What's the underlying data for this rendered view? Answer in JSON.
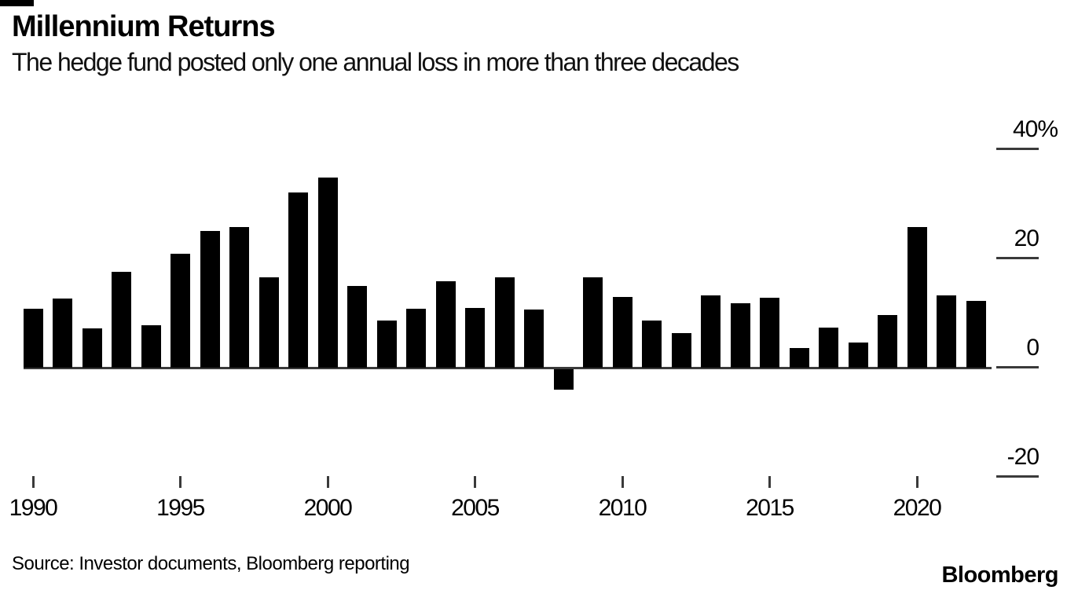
{
  "header": {
    "title": "Millennium Returns",
    "subtitle": "The hedge fund posted only one annual loss in more than three decades"
  },
  "footer": {
    "source": "Source: Investor documents, Bloomberg reporting",
    "brand": "Bloomberg"
  },
  "chart_data": {
    "type": "bar",
    "title": "Millennium Returns",
    "subtitle": "The hedge fund posted only one annual loss in more than three decades",
    "unit": "percent annual return",
    "bar_color": "#000000",
    "axis_color": "#3a3a3a",
    "background_color": "#ffffff",
    "grid": false,
    "legend": false,
    "ylim": [
      -25,
      42
    ],
    "y_ticks": [
      {
        "label": "40%",
        "value": 40
      },
      {
        "label": "20",
        "value": 20
      },
      {
        "label": "0",
        "value": 0
      },
      {
        "label": "-20",
        "value": -20
      }
    ],
    "x_tick_years": [
      1990,
      1995,
      2000,
      2005,
      2010,
      2015,
      2020
    ],
    "years": [
      1990,
      1991,
      1992,
      1993,
      1994,
      1995,
      1996,
      1997,
      1998,
      1999,
      2000,
      2001,
      2002,
      2003,
      2004,
      2005,
      2006,
      2007,
      2008,
      2009,
      2010,
      2011,
      2012,
      2013,
      2014,
      2015,
      2016,
      2017,
      2018,
      2019,
      2020,
      2021,
      2022
    ],
    "values": [
      10.8,
      12.6,
      7.2,
      17.6,
      7.7,
      20.8,
      25.1,
      25.8,
      16.6,
      32.1,
      34.8,
      14.9,
      8.6,
      10.8,
      15.8,
      11.0,
      16.6,
      10.6,
      -3.7,
      16.6,
      13.0,
      8.6,
      6.3,
      13.3,
      11.8,
      12.8,
      3.6,
      7.3,
      4.6,
      9.7,
      25.8,
      13.3,
      12.2
    ]
  }
}
